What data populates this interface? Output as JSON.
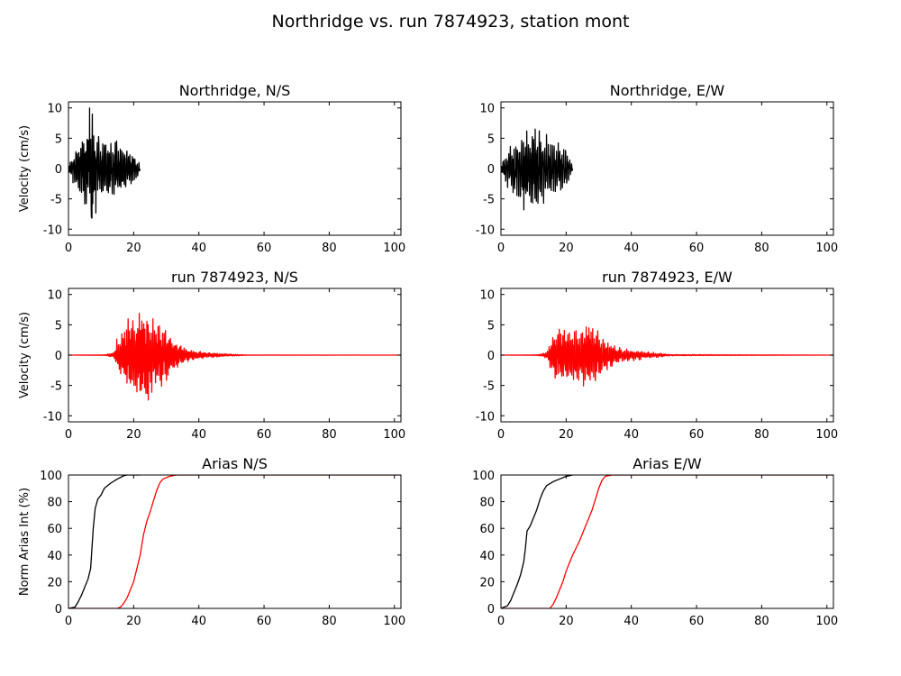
{
  "figure_title": "Northridge vs. run 7874923, station mont",
  "colors": {
    "observed": "#000000",
    "simulated": "#ff0000",
    "axes": "#000000"
  },
  "chart_data": [
    {
      "id": "ns_observed",
      "type": "line",
      "title": "Northridge, N/S",
      "xlabel": "",
      "ylabel": "Velocity (cm/s)",
      "xlim": [
        0,
        102
      ],
      "ylim": [
        -11,
        11
      ],
      "xticks": [
        0,
        20,
        40,
        60,
        80,
        100
      ],
      "yticks": [
        -10,
        -5,
        0,
        5,
        10
      ],
      "series": [
        {
          "kind": "oscillation",
          "color": "#000000",
          "envelope": [
            [
              0,
              0.5
            ],
            [
              2,
              2.5
            ],
            [
              4,
              4.5
            ],
            [
              6,
              6.0
            ],
            [
              7,
              9.0
            ],
            [
              8,
              6.0
            ],
            [
              10,
              4.5
            ],
            [
              12,
              4.0
            ],
            [
              14,
              4.0
            ],
            [
              16,
              3.5
            ],
            [
              18,
              3.0
            ],
            [
              20,
              2.0
            ],
            [
              21,
              1.5
            ],
            [
              22,
              0.5
            ]
          ],
          "peaks": [
            [
              6.5,
              10.0
            ],
            [
              7.2,
              -8.2
            ]
          ],
          "period": 0.55
        }
      ]
    },
    {
      "id": "ew_observed",
      "type": "line",
      "title": "Northridge, E/W",
      "xlabel": "",
      "ylabel": "",
      "xlim": [
        0,
        102
      ],
      "ylim": [
        -11,
        11
      ],
      "xticks": [
        0,
        20,
        40,
        60,
        80,
        100
      ],
      "yticks": [
        -10,
        -5,
        0,
        5,
        10
      ],
      "series": [
        {
          "kind": "oscillation",
          "color": "#000000",
          "envelope": [
            [
              0,
              0.5
            ],
            [
              2,
              2.5
            ],
            [
              4,
              4.0
            ],
            [
              6,
              5.0
            ],
            [
              8,
              5.5
            ],
            [
              10,
              6.0
            ],
            [
              12,
              5.0
            ],
            [
              14,
              4.5
            ],
            [
              16,
              4.0
            ],
            [
              18,
              3.5
            ],
            [
              20,
              3.0
            ],
            [
              21,
              2.0
            ],
            [
              22,
              0.5
            ]
          ],
          "peaks": [
            [
              10.5,
              6.5
            ],
            [
              7.0,
              -6.8
            ]
          ],
          "period": 0.6
        }
      ]
    },
    {
      "id": "ns_simulated",
      "type": "line",
      "title": "run 7874923, N/S",
      "xlabel": "",
      "ylabel": "Velocity (cm/s)",
      "xlim": [
        0,
        102
      ],
      "ylim": [
        -11,
        11
      ],
      "xticks": [
        0,
        20,
        40,
        60,
        80,
        100
      ],
      "yticks": [
        -10,
        -5,
        0,
        5,
        10
      ],
      "series": [
        {
          "kind": "oscillation",
          "color": "#ff0000",
          "envelope": [
            [
              0,
              0
            ],
            [
              11,
              0.05
            ],
            [
              14,
              0.4
            ],
            [
              15,
              2.5
            ],
            [
              17,
              4.0
            ],
            [
              20,
              6.0
            ],
            [
              23,
              6.5
            ],
            [
              25,
              5.5
            ],
            [
              28,
              4.5
            ],
            [
              31,
              3.0
            ],
            [
              34,
              1.5
            ],
            [
              37,
              0.8
            ],
            [
              42,
              0.4
            ],
            [
              48,
              0.2
            ],
            [
              55,
              0.02
            ],
            [
              102,
              0
            ]
          ],
          "peaks": [
            [
              22.5,
              5.6
            ],
            [
              24.5,
              -7.4
            ]
          ],
          "period": 0.5
        }
      ]
    },
    {
      "id": "ew_simulated",
      "type": "line",
      "title": "run 7874923, E/W",
      "xlabel": "",
      "ylabel": "",
      "xlim": [
        0,
        102
      ],
      "ylim": [
        -11,
        11
      ],
      "xticks": [
        0,
        20,
        40,
        60,
        80,
        100
      ],
      "yticks": [
        -10,
        -5,
        0,
        5,
        10
      ],
      "series": [
        {
          "kind": "oscillation",
          "color": "#ff0000",
          "envelope": [
            [
              0,
              0
            ],
            [
              11,
              0.05
            ],
            [
              14,
              0.4
            ],
            [
              16,
              3.5
            ],
            [
              18,
              4.2
            ],
            [
              20,
              4.0
            ],
            [
              24,
              3.8
            ],
            [
              27,
              4.5
            ],
            [
              30,
              3.5
            ],
            [
              33,
              2.0
            ],
            [
              36,
              1.2
            ],
            [
              40,
              0.8
            ],
            [
              46,
              0.4
            ],
            [
              52,
              0.1
            ],
            [
              102,
              0
            ]
          ],
          "peaks": [
            [
              27,
              4.5
            ],
            [
              29,
              -4.2
            ]
          ],
          "period": 0.55
        }
      ]
    },
    {
      "id": "ns_arias",
      "type": "line",
      "title": "Arias N/S",
      "xlabel": "",
      "ylabel": "Norm Arias Int (%)",
      "xlim": [
        0,
        102
      ],
      "ylim": [
        0,
        100
      ],
      "xticks": [
        0,
        20,
        40,
        60,
        80,
        100
      ],
      "yticks": [
        0,
        20,
        40,
        60,
        80,
        100
      ],
      "series": [
        {
          "kind": "cumulative",
          "color": "#000000",
          "points": [
            [
              0,
              0
            ],
            [
              2,
              1
            ],
            [
              3,
              5
            ],
            [
              4,
              10
            ],
            [
              5,
              16
            ],
            [
              6,
              22
            ],
            [
              6.8,
              30
            ],
            [
              7.2,
              45
            ],
            [
              7.6,
              60
            ],
            [
              8.2,
              75
            ],
            [
              9,
              82
            ],
            [
              10,
              85
            ],
            [
              11,
              90
            ],
            [
              13,
              94
            ],
            [
              15,
              97
            ],
            [
              17,
              99.5
            ],
            [
              18,
              100
            ],
            [
              22,
              100
            ]
          ]
        },
        {
          "kind": "cumulative",
          "color": "#ff0000",
          "points": [
            [
              0,
              0
            ],
            [
              15,
              0
            ],
            [
              16,
              1
            ],
            [
              17,
              4
            ],
            [
              18,
              8
            ],
            [
              19,
              14
            ],
            [
              20,
              20
            ],
            [
              21,
              30
            ],
            [
              22,
              40
            ],
            [
              23,
              55
            ],
            [
              24,
              65
            ],
            [
              25,
              72
            ],
            [
              26,
              80
            ],
            [
              27,
              88
            ],
            [
              28,
              94
            ],
            [
              29,
              97
            ],
            [
              31,
              99
            ],
            [
              33,
              100
            ],
            [
              102,
              100
            ]
          ]
        }
      ]
    },
    {
      "id": "ew_arias",
      "type": "line",
      "title": "Arias E/W",
      "xlabel": "",
      "ylabel": "",
      "xlim": [
        0,
        102
      ],
      "ylim": [
        0,
        100
      ],
      "xticks": [
        0,
        20,
        40,
        60,
        80,
        100
      ],
      "yticks": [
        0,
        20,
        40,
        60,
        80,
        100
      ],
      "series": [
        {
          "kind": "cumulative",
          "color": "#000000",
          "points": [
            [
              0,
              0
            ],
            [
              2,
              2
            ],
            [
              3,
              6
            ],
            [
              4,
              12
            ],
            [
              5,
              18
            ],
            [
              6,
              25
            ],
            [
              7,
              35
            ],
            [
              7.5,
              45
            ],
            [
              8,
              58
            ],
            [
              9,
              62
            ],
            [
              10,
              68
            ],
            [
              11,
              74
            ],
            [
              12,
              82
            ],
            [
              13,
              88
            ],
            [
              14,
              92
            ],
            [
              16,
              95
            ],
            [
              18,
              97
            ],
            [
              20,
              99
            ],
            [
              22,
              100
            ]
          ]
        },
        {
          "kind": "cumulative",
          "color": "#ff0000",
          "points": [
            [
              0,
              0
            ],
            [
              15,
              0
            ],
            [
              16,
              3
            ],
            [
              17,
              8
            ],
            [
              18,
              14
            ],
            [
              19,
              20
            ],
            [
              20,
              28
            ],
            [
              21,
              34
            ],
            [
              22,
              40
            ],
            [
              23,
              45
            ],
            [
              24,
              50
            ],
            [
              25,
              56
            ],
            [
              26,
              62
            ],
            [
              27,
              68
            ],
            [
              28,
              74
            ],
            [
              29,
              82
            ],
            [
              30,
              90
            ],
            [
              31,
              96
            ],
            [
              32,
              99
            ],
            [
              34,
              100
            ],
            [
              102,
              100
            ]
          ]
        }
      ]
    }
  ]
}
